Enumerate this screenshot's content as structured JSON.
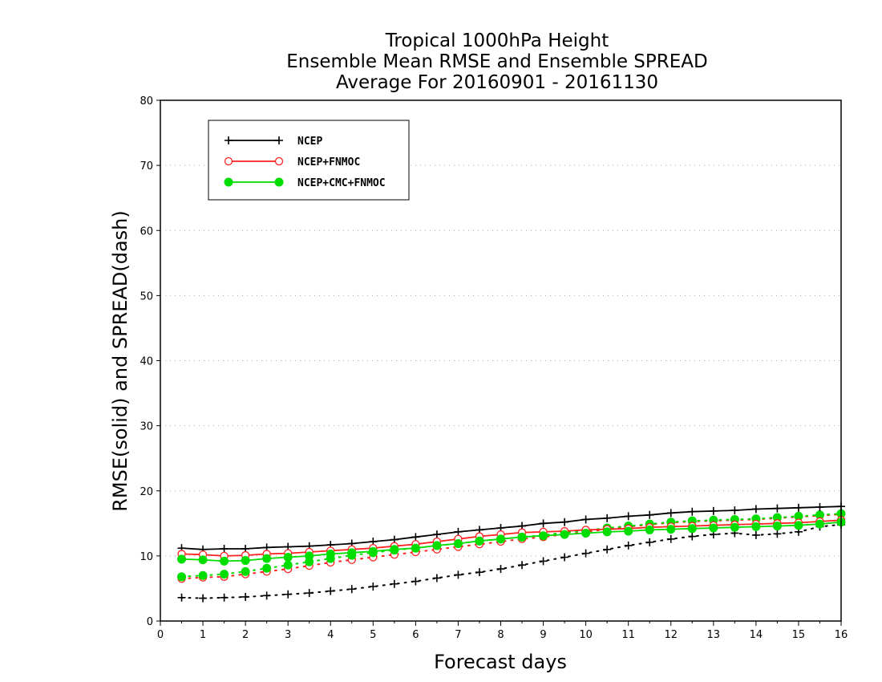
{
  "colors": {
    "ncep": "#000000",
    "ncep_fnmoc": "#ff2020",
    "ncep_cmc_fnmoc": "#00dd00",
    "grid": "#aaaaaa"
  },
  "chart_data": {
    "type": "line",
    "title_lines": [
      "Tropical 1000hPa Height",
      "Ensemble Mean RMSE and Ensemble SPREAD",
      "Average For 20160901 - 20161130"
    ],
    "xlabel": "Forecast days",
    "ylabel": "RMSE(solid) and SPREAD(dash)",
    "xlim": [
      0,
      16
    ],
    "ylim": [
      0,
      80
    ],
    "xticks": [
      "0",
      "1",
      "2",
      "3",
      "4",
      "5",
      "6",
      "7",
      "8",
      "9",
      "10",
      "11",
      "12",
      "13",
      "14",
      "15",
      "16"
    ],
    "yticks": [
      "0",
      "10",
      "20",
      "30",
      "40",
      "50",
      "60",
      "70",
      "80"
    ],
    "grid": "horizontal dotted",
    "legend_position": "top-left",
    "x": [
      0.5,
      1,
      1.5,
      2,
      2.5,
      3,
      3.5,
      4,
      4.5,
      5,
      5.5,
      6,
      6.5,
      7,
      7.5,
      8,
      8.5,
      9,
      9.5,
      10,
      10.5,
      11,
      11.5,
      12,
      12.5,
      13,
      13.5,
      14,
      14.5,
      15,
      15.5,
      16
    ],
    "series": [
      {
        "name": "NCEP",
        "marker": "plus",
        "rmse": [
          11.2,
          11.0,
          11.1,
          11.1,
          11.3,
          11.4,
          11.5,
          11.7,
          11.9,
          12.2,
          12.5,
          12.9,
          13.3,
          13.7,
          14.0,
          14.3,
          14.6,
          15.0,
          15.2,
          15.6,
          15.8,
          16.1,
          16.3,
          16.6,
          16.8,
          16.9,
          17.0,
          17.2,
          17.3,
          17.4,
          17.5,
          17.6
        ],
        "spread": [
          3.6,
          3.5,
          3.6,
          3.7,
          3.9,
          4.1,
          4.3,
          4.6,
          4.9,
          5.3,
          5.7,
          6.1,
          6.6,
          7.1,
          7.5,
          8.0,
          8.6,
          9.2,
          9.8,
          10.4,
          11.0,
          11.6,
          12.1,
          12.6,
          13.0,
          13.3,
          13.5,
          13.2,
          13.4,
          13.7,
          14.5,
          14.8
        ]
      },
      {
        "name": "NCEP+FNMOC",
        "marker": "open-circle",
        "rmse": [
          10.3,
          10.2,
          10.0,
          10.1,
          10.3,
          10.4,
          10.6,
          10.8,
          11.0,
          11.2,
          11.5,
          11.8,
          12.2,
          12.6,
          13.0,
          13.3,
          13.6,
          13.7,
          13.8,
          14.0,
          14.1,
          14.2,
          14.4,
          14.5,
          14.6,
          14.7,
          14.8,
          14.9,
          15.0,
          15.1,
          15.3,
          15.5
        ],
        "spread": [
          6.5,
          6.7,
          6.8,
          7.2,
          7.6,
          8.0,
          8.5,
          9.0,
          9.4,
          9.8,
          10.2,
          10.6,
          11.0,
          11.4,
          11.8,
          12.2,
          12.6,
          12.9,
          13.3,
          13.7,
          14.1,
          14.5,
          14.8,
          15.1,
          15.3,
          15.4,
          15.5,
          15.6,
          15.8,
          16.0,
          16.2,
          16.4
        ]
      },
      {
        "name": "NCEP+CMC+FNMOC",
        "marker": "filled-circle",
        "rmse": [
          9.5,
          9.4,
          9.2,
          9.3,
          9.6,
          9.8,
          10.0,
          10.3,
          10.5,
          10.7,
          11.0,
          11.2,
          11.6,
          11.9,
          12.3,
          12.6,
          12.9,
          13.1,
          13.3,
          13.5,
          13.7,
          13.8,
          14.0,
          14.1,
          14.2,
          14.3,
          14.4,
          14.5,
          14.6,
          14.7,
          14.9,
          15.2
        ],
        "spread": [
          6.8,
          7.0,
          7.2,
          7.6,
          8.1,
          8.6,
          9.1,
          9.6,
          10.1,
          10.5,
          10.9,
          11.2,
          11.6,
          11.9,
          12.3,
          12.6,
          12.9,
          13.2,
          13.6,
          13.9,
          14.3,
          14.6,
          14.9,
          15.2,
          15.4,
          15.5,
          15.6,
          15.7,
          15.9,
          16.1,
          16.3,
          16.5
        ]
      }
    ]
  }
}
